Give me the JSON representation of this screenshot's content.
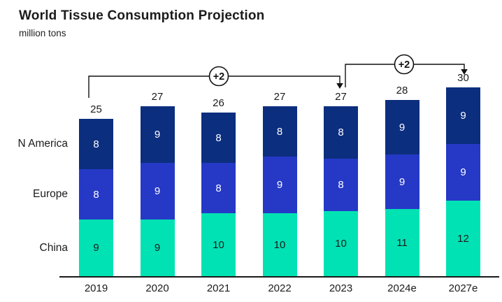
{
  "title": "World Tissue Consumption Projection",
  "subtitle": "million tons",
  "colors": {
    "n_america": "#0C2E7F",
    "europe": "#2539C6",
    "china": "#01E2B4",
    "text": "#1b1b1b"
  },
  "chart_data": {
    "type": "bar",
    "stacked": true,
    "title": "World Tissue Consumption Projection",
    "unit_label": "million tons",
    "grid": false,
    "legend_position": "left-row-labels",
    "categories": [
      "2019",
      "2020",
      "2021",
      "2022",
      "2023",
      "2024e",
      "2027e"
    ],
    "series": [
      {
        "name": "China",
        "color": "#01E2B4",
        "label_color": "#1b1b1b",
        "values": [
          9,
          9,
          10,
          10,
          10,
          11,
          12
        ]
      },
      {
        "name": "Europe",
        "color": "#2539C6",
        "label_color": "#ffffff",
        "values": [
          8,
          9,
          8,
          9,
          8,
          9,
          9
        ]
      },
      {
        "name": "N America",
        "color": "#0C2E7F",
        "label_color": "#ffffff",
        "values": [
          8,
          9,
          8,
          8,
          8,
          9,
          9
        ]
      }
    ],
    "totals": [
      25,
      27,
      26,
      27,
      27,
      28,
      30
    ],
    "annotations": [
      {
        "label": "+2",
        "from_category": "2019",
        "to_category": "2023"
      },
      {
        "label": "+2",
        "from_category": "2023",
        "to_category": "2027e"
      }
    ]
  }
}
